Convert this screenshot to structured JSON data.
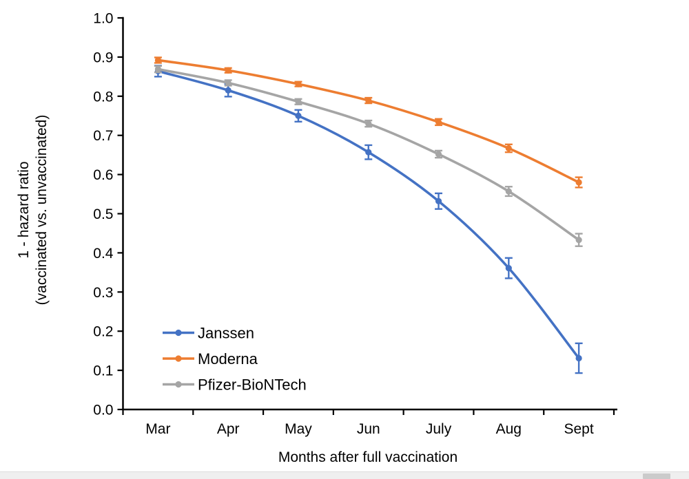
{
  "chart_data": {
    "type": "line",
    "title": "",
    "xlabel": "Months after full vaccination",
    "ylabel_line1": "1 - hazard ratio",
    "ylabel_line2": "(vaccinated vs. unvaccinated)",
    "categories": [
      "Mar",
      "Apr",
      "May",
      "Jun",
      "July",
      "Aug",
      "Sept"
    ],
    "y_tick_labels": [
      "0.0",
      "0.1",
      "0.2",
      "0.3",
      "0.4",
      "0.5",
      "0.6",
      "0.7",
      "0.8",
      "0.9",
      "1.0"
    ],
    "ylim": [
      0.0,
      1.0
    ],
    "grid": false,
    "legend_position": "inside-bottom-left",
    "series": [
      {
        "name": "Janssen",
        "color": "#4472C4",
        "values": [
          0.864,
          0.815,
          0.75,
          0.657,
          0.532,
          0.361,
          0.131
        ],
        "errors": [
          0.014,
          0.016,
          0.015,
          0.018,
          0.02,
          0.026,
          0.038
        ]
      },
      {
        "name": "Moderna",
        "color": "#ED7D31",
        "values": [
          0.892,
          0.866,
          0.831,
          0.789,
          0.734,
          0.667,
          0.58
        ],
        "errors": [
          0.007,
          0.006,
          0.006,
          0.007,
          0.008,
          0.01,
          0.013
        ]
      },
      {
        "name": "Pfizer-BioNTech",
        "color": "#A5A5A5",
        "values": [
          0.869,
          0.834,
          0.786,
          0.73,
          0.652,
          0.557,
          0.433
        ],
        "errors": [
          0.008,
          0.007,
          0.007,
          0.008,
          0.009,
          0.012,
          0.016
        ]
      }
    ],
    "axis_color": "#000000"
  },
  "scrollbar": {
    "track_color": "#efefef",
    "thumb_color": "#cbcbcb"
  }
}
